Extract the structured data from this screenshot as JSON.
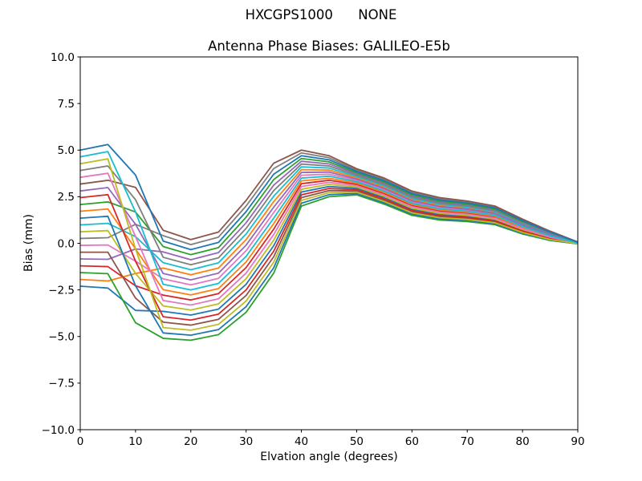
{
  "figure": {
    "suptitle": "HXCGPS1000      NONE",
    "background_color": "#ffffff"
  },
  "chart_data": {
    "type": "line",
    "title": "Antenna Phase Biases: GALILEO-E5b",
    "xlabel": "Elvation angle (degrees)",
    "ylabel": "Bias (mm)",
    "xlim": [
      0,
      90
    ],
    "ylim": [
      -10,
      10
    ],
    "grid": false,
    "legend": false,
    "x_ticks": [
      0,
      10,
      20,
      30,
      40,
      50,
      60,
      70,
      80,
      90
    ],
    "x_tick_labels": [
      "0",
      "10",
      "20",
      "30",
      "40",
      "50",
      "60",
      "70",
      "80",
      "90"
    ],
    "y_ticks": [
      -10,
      -7.5,
      -5,
      -2.5,
      0,
      2.5,
      5,
      7.5,
      10
    ],
    "y_tick_labels": [
      "−10.0",
      "−7.5",
      "−5.0",
      "−2.5",
      "0.0",
      "2.5",
      "5.0",
      "7.5",
      "10.0"
    ],
    "x": [
      0,
      5,
      10,
      15,
      20,
      25,
      30,
      35,
      40,
      45,
      50,
      55,
      60,
      65,
      70,
      75,
      80,
      85,
      90
    ],
    "series": [
      {
        "color": "#1f77b4",
        "values": [
          -2.3,
          -2.4,
          -3.6,
          -3.65,
          -3.85,
          -3.53,
          -2.2,
          -0.13,
          2.75,
          3.05,
          2.95,
          2.45,
          1.83,
          1.55,
          1.45,
          1.25,
          0.7,
          0.28,
          0.0
        ]
      },
      {
        "color": "#ff7f0e",
        "values": [
          -1.94,
          -2.02,
          -1.62,
          -1.33,
          -1.69,
          -1.33,
          0.2,
          2.24,
          3.95,
          3.93,
          3.51,
          3.01,
          2.35,
          2.03,
          1.89,
          1.65,
          1.02,
          0.48,
          0.04
        ]
      },
      {
        "color": "#2ca02c",
        "values": [
          -1.57,
          -1.63,
          -4.26,
          -5.1,
          -5.2,
          -4.9,
          -3.7,
          -1.6,
          2.0,
          2.5,
          2.6,
          2.1,
          1.5,
          1.25,
          1.17,
          1.0,
          0.5,
          0.15,
          -0.03
        ]
      },
      {
        "color": "#d62728",
        "values": [
          -1.21,
          -1.25,
          -2.28,
          -2.78,
          -3.04,
          -2.7,
          -1.3,
          0.76,
          3.2,
          3.38,
          3.16,
          2.66,
          2.02,
          1.73,
          1.61,
          1.4,
          0.82,
          0.35,
          0.01
        ]
      },
      {
        "color": "#9467bd",
        "values": [
          -0.84,
          -0.86,
          -0.3,
          -0.46,
          -0.88,
          -0.5,
          1.1,
          3.12,
          4.4,
          4.26,
          3.72,
          3.22,
          2.54,
          2.21,
          2.05,
          1.8,
          1.14,
          0.55,
          0.05
        ]
      },
      {
        "color": "#8c564b",
        "values": [
          -0.48,
          -0.48,
          -2.94,
          -4.23,
          -4.39,
          -4.08,
          -2.8,
          -0.72,
          2.45,
          2.83,
          2.81,
          2.31,
          1.7,
          1.43,
          1.34,
          1.15,
          0.62,
          0.23,
          -0.02
        ]
      },
      {
        "color": "#e377c2",
        "values": [
          -0.11,
          -0.09,
          -0.96,
          -1.91,
          -2.23,
          -1.88,
          -0.4,
          1.65,
          3.65,
          3.71,
          3.37,
          2.87,
          2.22,
          1.91,
          1.78,
          1.55,
          0.94,
          0.43,
          0.03
        ]
      },
      {
        "color": "#7f7f7f",
        "values": [
          0.26,
          0.3,
          1.02,
          0.41,
          -0.07,
          0.33,
          2.0,
          4.01,
          4.85,
          4.59,
          3.93,
          3.43,
          2.74,
          2.39,
          2.22,
          1.95,
          1.26,
          0.63,
          0.07
        ]
      },
      {
        "color": "#bcbd22",
        "values": [
          0.62,
          0.68,
          -1.62,
          -3.36,
          -3.58,
          -3.25,
          -1.9,
          0.17,
          2.9,
          3.16,
          3.02,
          2.52,
          1.89,
          1.61,
          1.5,
          1.3,
          0.74,
          0.3,
          0.0
        ]
      },
      {
        "color": "#17becf",
        "values": [
          0.99,
          1.07,
          0.36,
          -1.04,
          -1.42,
          -1.05,
          0.5,
          2.53,
          4.1,
          4.04,
          3.58,
          3.08,
          2.41,
          2.09,
          1.94,
          1.7,
          1.06,
          0.5,
          0.04
        ]
      },
      {
        "color": "#1f77b4",
        "values": [
          1.35,
          1.45,
          -2.28,
          -4.81,
          -4.93,
          -4.63,
          -3.4,
          -1.31,
          2.15,
          2.61,
          2.67,
          2.17,
          1.57,
          1.31,
          1.23,
          1.05,
          0.54,
          0.18,
          -0.03
        ]
      },
      {
        "color": "#ff7f0e",
        "values": [
          1.72,
          1.84,
          -0.3,
          -2.49,
          -2.77,
          -2.43,
          -1.0,
          1.06,
          3.35,
          3.49,
          3.23,
          2.73,
          2.09,
          1.79,
          1.67,
          1.45,
          0.86,
          0.38,
          0.02
        ]
      },
      {
        "color": "#2ca02c",
        "values": [
          2.08,
          2.22,
          1.68,
          -0.17,
          -0.61,
          -0.23,
          1.4,
          3.42,
          4.55,
          4.37,
          3.79,
          3.29,
          2.61,
          2.27,
          2.11,
          1.85,
          1.18,
          0.58,
          0.06
        ]
      },
      {
        "color": "#d62728",
        "values": [
          2.45,
          2.61,
          -0.96,
          -3.94,
          -4.12,
          -3.8,
          -2.5,
          -0.42,
          2.6,
          2.94,
          2.88,
          2.38,
          1.76,
          1.49,
          1.39,
          1.2,
          0.66,
          0.25,
          -0.01
        ]
      },
      {
        "color": "#9467bd",
        "values": [
          2.81,
          2.99,
          1.02,
          -1.62,
          -1.96,
          -1.6,
          -0.1,
          1.94,
          3.8,
          3.82,
          3.44,
          2.94,
          2.28,
          1.97,
          1.83,
          1.6,
          0.98,
          0.45,
          0.03
        ]
      },
      {
        "color": "#8c564b",
        "values": [
          3.18,
          3.38,
          3.0,
          0.7,
          0.2,
          0.6,
          2.3,
          4.3,
          5.0,
          4.7,
          4.0,
          3.5,
          2.8,
          2.45,
          2.27,
          2.0,
          1.3,
          0.65,
          0.07
        ]
      },
      {
        "color": "#e377c2",
        "values": [
          3.54,
          3.76,
          0.36,
          -3.07,
          -3.31,
          -2.98,
          -1.6,
          0.47,
          3.05,
          3.27,
          3.09,
          2.59,
          1.96,
          1.67,
          1.56,
          1.35,
          0.78,
          0.33,
          0.01
        ]
      },
      {
        "color": "#7f7f7f",
        "values": [
          3.91,
          4.15,
          2.34,
          -0.75,
          -1.15,
          -0.78,
          0.8,
          2.83,
          4.25,
          4.15,
          3.65,
          3.15,
          2.48,
          2.15,
          2.0,
          1.75,
          1.1,
          0.53,
          0.05
        ]
      },
      {
        "color": "#bcbd22",
        "values": [
          4.27,
          4.53,
          -0.3,
          -4.52,
          -4.66,
          -4.35,
          -3.1,
          -1.01,
          2.3,
          2.72,
          2.74,
          2.24,
          1.63,
          1.37,
          1.28,
          1.1,
          0.58,
          0.2,
          -0.02
        ]
      },
      {
        "color": "#17becf",
        "values": [
          4.64,
          4.92,
          1.68,
          -2.2,
          -2.5,
          -2.15,
          -0.7,
          1.35,
          3.5,
          3.6,
          3.3,
          2.8,
          2.15,
          1.85,
          1.72,
          1.5,
          0.9,
          0.4,
          0.02
        ]
      },
      {
        "color": "#1f77b4",
        "values": [
          5.0,
          5.3,
          3.66,
          0.12,
          -0.34,
          0.05,
          1.7,
          3.71,
          4.7,
          4.48,
          3.86,
          3.36,
          2.67,
          2.33,
          2.16,
          1.9,
          1.22,
          0.6,
          0.06
        ]
      }
    ]
  }
}
